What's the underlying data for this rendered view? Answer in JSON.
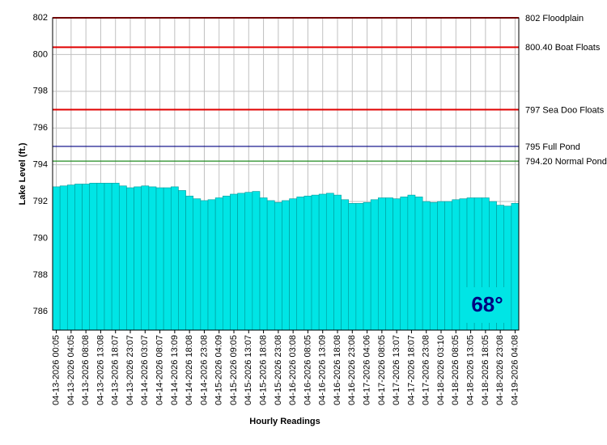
{
  "chart_data": {
    "type": "bar",
    "y_label": "Lake Level (ft.)",
    "x_label": "Hourly Readings",
    "annotation": "68°",
    "color": "#00e5e5",
    "grid": true,
    "categories": [
      "04-13-2026 00:05",
      null,
      "04-13-2026 04:05",
      null,
      "04-13-2026 08:08",
      null,
      "04-13-2026 13:08",
      null,
      "04-13-2026 18:07",
      null,
      "04-13-2026 23:07",
      null,
      "04-14-2026 03:07",
      null,
      "04-14-2026 08:07",
      null,
      "04-14-2026 13:09",
      null,
      "04-14-2026 18:08",
      null,
      "04-14-2026 23:08",
      null,
      "04-15-2026 04:09",
      null,
      "04-15-2026 09:05",
      null,
      "04-15-2026 13:07",
      null,
      "04-15-2026 18:08",
      null,
      "04-15-2026 23:08",
      null,
      "04-16-2026 03:08",
      null,
      "04-16-2026 08:05",
      null,
      "04-16-2026 13:09",
      null,
      "04-16-2026 18:08",
      null,
      "04-16-2026 23:08",
      null,
      "04-17-2026 04:06",
      null,
      "04-17-2026 08:05",
      null,
      "04-17-2026 13:07",
      null,
      "04-17-2026 18:07",
      null,
      "04-17-2026 23:08",
      null,
      "04-18-2026 03:10",
      null,
      "04-18-2026 08:05",
      null,
      "04-18-2026 13:05",
      null,
      "04-18-2026 18:05",
      null,
      "04-18-2026 23:08",
      null,
      "04-19-2026 04:08"
    ],
    "values": [
      792.8,
      792.85,
      792.9,
      792.95,
      792.95,
      793.0,
      793.0,
      793.0,
      793.0,
      792.85,
      792.75,
      792.8,
      792.85,
      792.8,
      792.75,
      792.75,
      792.8,
      792.6,
      792.3,
      792.15,
      792.05,
      792.1,
      792.2,
      792.3,
      792.4,
      792.45,
      792.5,
      792.55,
      792.2,
      792.05,
      791.95,
      792.05,
      792.15,
      792.25,
      792.3,
      792.35,
      792.4,
      792.45,
      792.35,
      792.1,
      791.9,
      791.9,
      791.95,
      792.1,
      792.2,
      792.2,
      792.15,
      792.25,
      792.35,
      792.25,
      792.0,
      791.95,
      792.0,
      792.0,
      792.1,
      792.15,
      792.2,
      792.2,
      792.2,
      792.0,
      791.8,
      791.75,
      791.9
    ],
    "ylim": [
      785,
      802
    ],
    "yticks": [
      786,
      788,
      790,
      792,
      794,
      796,
      798,
      800,
      802
    ],
    "reference_lines": [
      {
        "value": 802,
        "label": "802 Floodplain",
        "color": "#e00000"
      },
      {
        "value": 800.4,
        "label": "800.40 Boat Floats",
        "color": "#e00000"
      },
      {
        "value": 797,
        "label": "797 Sea Doo Floats",
        "color": "#e00000"
      },
      {
        "value": 795,
        "label": "795 Full Pond",
        "color": "#000080"
      },
      {
        "value": 794.2,
        "label": "794.20 Normal Pond",
        "color": "#228b22"
      }
    ]
  }
}
